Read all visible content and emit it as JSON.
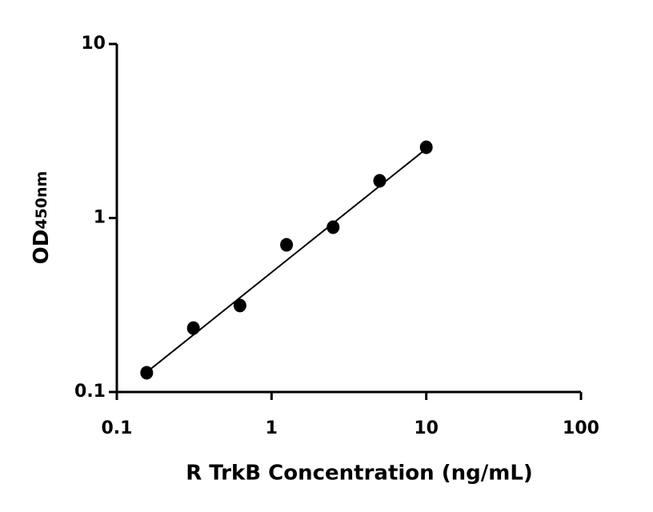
{
  "chart_data": {
    "type": "scatter",
    "x_label": "R TrkB Concentration (ng/mL)",
    "y_label": "OD",
    "y_label_sub": "450nm",
    "x_scale": "log",
    "y_scale": "log",
    "xlim": [
      0.1,
      100
    ],
    "ylim": [
      0.1,
      10
    ],
    "xticks": [
      0.1,
      1,
      10,
      100
    ],
    "yticks": [
      0.1,
      1,
      10
    ],
    "color": "#000000",
    "x": [
      0.156,
      0.3125,
      0.625,
      1.25,
      2.5,
      5,
      10
    ],
    "values": [
      0.129,
      0.233,
      0.314,
      0.701,
      0.885,
      1.636,
      2.55
    ],
    "fit_line": {
      "x": [
        0.156,
        10
      ],
      "values": [
        0.13,
        2.5
      ]
    }
  }
}
